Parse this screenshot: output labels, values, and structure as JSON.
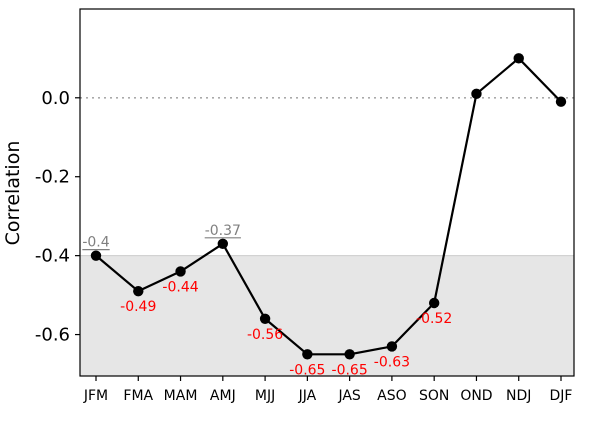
{
  "chart_data": {
    "type": "line",
    "ylabel": "Correlation",
    "xlabel": "",
    "categories": [
      "JFM",
      "FMA",
      "MAM",
      "AMJ",
      "MJJ",
      "JJA",
      "JAS",
      "ASO",
      "SON",
      "OND",
      "NDJ",
      "DJF"
    ],
    "values": [
      -0.4,
      -0.49,
      -0.44,
      -0.37,
      -0.56,
      -0.65,
      -0.65,
      -0.63,
      -0.52,
      0.01,
      0.1,
      -0.01
    ],
    "ylim": [
      -0.705,
      0.225
    ],
    "yticks": [
      0.0,
      -0.2,
      -0.4,
      -0.6
    ],
    "ytick_labels": [
      "0.0",
      "-0.2",
      "-0.4",
      "-0.6"
    ],
    "reference_line": 0.0,
    "shaded_region": [
      -0.705,
      -0.4
    ],
    "annotations": [
      {
        "index": 0,
        "text": "-0.4",
        "style": "gray-underlined"
      },
      {
        "index": 1,
        "text": "-0.49",
        "style": "red"
      },
      {
        "index": 2,
        "text": "-0.44",
        "style": "red"
      },
      {
        "index": 3,
        "text": "-0.37",
        "style": "gray-underlined"
      },
      {
        "index": 4,
        "text": "-0.56",
        "style": "red"
      },
      {
        "index": 5,
        "text": "-0.65",
        "style": "red"
      },
      {
        "index": 6,
        "text": "-0.65",
        "style": "red"
      },
      {
        "index": 7,
        "text": "-0.63",
        "style": "red"
      },
      {
        "index": 8,
        "text": "-0.52",
        "style": "red"
      }
    ],
    "colors": {
      "line": "#000000",
      "marker": "#000000",
      "shade": "#e6e6e6",
      "reference": "#aaaaaa",
      "annotation_red": "#ff0000",
      "annotation_gray": "#808080"
    }
  }
}
